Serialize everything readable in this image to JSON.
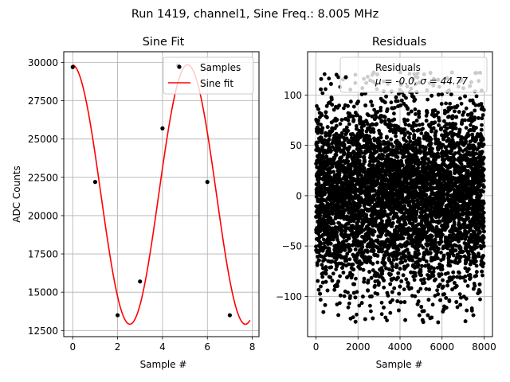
{
  "suptitle": "Run 1419, channel1, Sine Freq.: 8.005 MHz",
  "chart_data": [
    {
      "type": "scatter",
      "title": "Sine Fit",
      "xlabel": "Sample #",
      "ylabel": "ADC Counts",
      "xlim": [
        -0.4,
        8.3
      ],
      "ylim": [
        12100,
        30700
      ],
      "xticks": [
        0,
        2,
        4,
        6,
        8
      ],
      "yticks": [
        12500,
        15000,
        17500,
        20000,
        22500,
        25000,
        27500,
        30000
      ],
      "xtick_labels": [
        "0",
        "2",
        "4",
        "6",
        "8"
      ],
      "ytick_labels": [
        "12500",
        "15000",
        "17500",
        "20000",
        "22500",
        "25000",
        "27500",
        "30000"
      ],
      "grid": true,
      "legend_position": "upper right",
      "series": [
        {
          "name": "Samples",
          "kind": "scatter",
          "color": "#000000",
          "x": [
            0,
            1,
            2,
            3,
            4,
            4.7,
            6,
            7
          ],
          "y": [
            29700,
            22200,
            13500,
            15700,
            25700,
            29800,
            22200,
            13500
          ]
        },
        {
          "name": "Sine fit",
          "kind": "line",
          "color": "#ff0000",
          "model": {
            "offset": 21380,
            "amplitude": 8470,
            "period": 5.15,
            "peak_x": -0.03,
            "x_range": [
              0,
              7.9
            ]
          }
        }
      ]
    },
    {
      "type": "scatter",
      "title": "Residuals",
      "xlabel": "Sample #",
      "xlim": [
        -400,
        8400
      ],
      "ylim": [
        -140,
        143
      ],
      "xticks": [
        0,
        2000,
        4000,
        6000,
        8000
      ],
      "yticks": [
        -100,
        -50,
        0,
        50,
        100
      ],
      "xtick_labels": [
        "0",
        "2000",
        "4000",
        "6000",
        "8000"
      ],
      "ytick_labels": [
        "−100",
        "−50",
        "0",
        "50",
        "100"
      ],
      "grid": true,
      "legend_position": "upper right",
      "legend_title": "Residuals",
      "legend_stats": "μ = -0.0, σ = 44.77",
      "series": [
        {
          "name": "Residuals",
          "kind": "scatter",
          "color": "#000000",
          "distribution": {
            "count": 8000,
            "mean": 0.0,
            "std": 44.77,
            "x_range": [
              0,
              7999
            ],
            "y_range": [
              -127,
              123
            ]
          }
        }
      ]
    }
  ]
}
